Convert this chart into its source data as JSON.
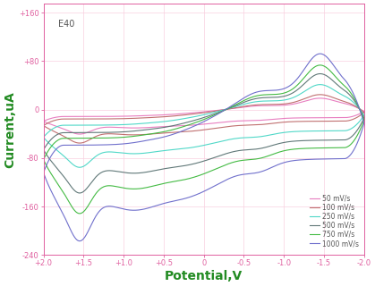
{
  "title_annotation": "E40",
  "xlabel": "Potential,V",
  "ylabel": "Current,uA",
  "xlim": [
    2.0,
    -2.0
  ],
  "ylim": [
    -240,
    175
  ],
  "yticks": [
    -240,
    -160,
    -80,
    0,
    80,
    160
  ],
  "ytick_labels": [
    "-240",
    "-160",
    "-80",
    "0",
    "+80",
    "+160"
  ],
  "xticks": [
    2.0,
    1.5,
    1.0,
    0.5,
    0.0,
    -0.5,
    -1.0,
    -1.5,
    -2.0
  ],
  "xtick_labels": [
    "+2.0",
    "+1.5",
    "+1.0",
    "+0.5",
    "0",
    "-0.5",
    "-1.0",
    "-1.5",
    "-2.0"
  ],
  "scan_rates": [
    "50 mV/s",
    "100 mV/s",
    "250 mV/s",
    "500 mV/s",
    "750 mV/s",
    "1000 mV/s"
  ],
  "colors": [
    "#e87ec0",
    "#c07070",
    "#50d8c8",
    "#607878",
    "#44bb44",
    "#7070cc"
  ],
  "background_color": "#ffffff",
  "spine_color": "#e060a0",
  "tick_color": "#e060a0",
  "xlabel_color": "#228b22",
  "ylabel_color": "#228b22",
  "annotation_color": "#555555",
  "grid_color": "#f8d0e0",
  "legend_fontsize": 5.5,
  "label_fontsize": 10
}
